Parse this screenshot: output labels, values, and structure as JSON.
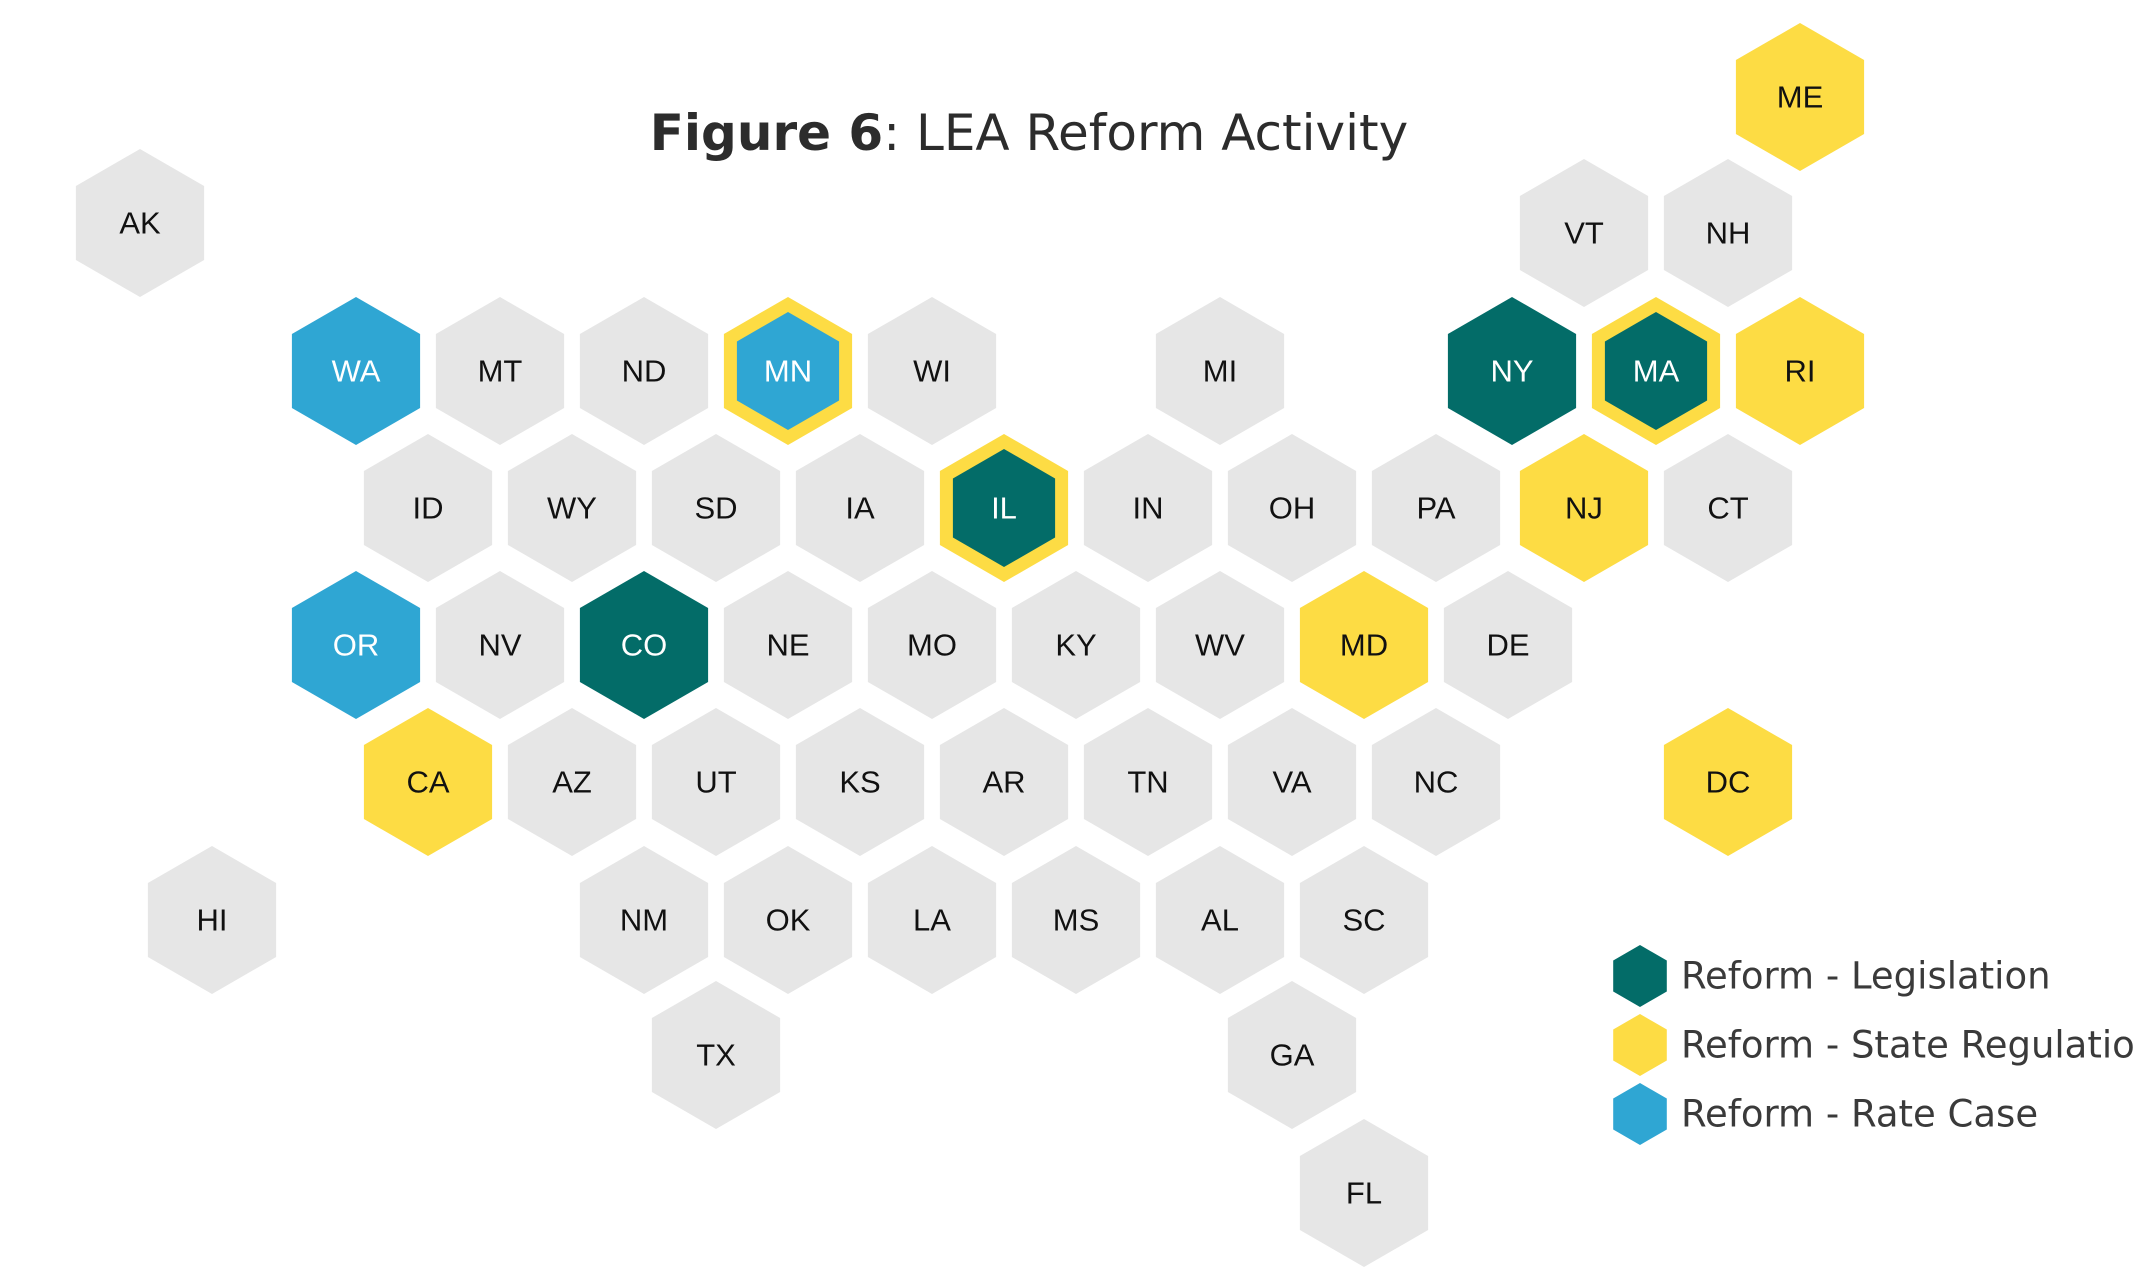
{
  "title": {
    "bold": "Figure 6",
    "rest": ": LEA Reform Activity"
  },
  "colors": {
    "none": "#e6e6e6",
    "legislation": "#036c68",
    "regulation": "#fddc44",
    "rate_case": "#2fa6d3",
    "label_dark": "#111111",
    "label_light": "#ffffff"
  },
  "legend": [
    {
      "key": "legislation",
      "label": "Reform - Legislation"
    },
    {
      "key": "regulation",
      "label": "Reform - State Regulation"
    },
    {
      "key": "rate_case",
      "label": "Reform - Rate Case"
    }
  ],
  "states": [
    {
      "abbr": "ME",
      "fill": "regulation"
    },
    {
      "abbr": "AK",
      "fill": "none"
    },
    {
      "abbr": "VT",
      "fill": "none"
    },
    {
      "abbr": "NH",
      "fill": "none"
    },
    {
      "abbr": "WA",
      "fill": "rate_case"
    },
    {
      "abbr": "MT",
      "fill": "none"
    },
    {
      "abbr": "ND",
      "fill": "none"
    },
    {
      "abbr": "MN",
      "fill": "rate_case",
      "ring": "regulation"
    },
    {
      "abbr": "WI",
      "fill": "none"
    },
    {
      "abbr": "MI",
      "fill": "none"
    },
    {
      "abbr": "NY",
      "fill": "legislation"
    },
    {
      "abbr": "MA",
      "fill": "legislation",
      "ring": "regulation"
    },
    {
      "abbr": "RI",
      "fill": "regulation"
    },
    {
      "abbr": "ID",
      "fill": "none"
    },
    {
      "abbr": "WY",
      "fill": "none"
    },
    {
      "abbr": "SD",
      "fill": "none"
    },
    {
      "abbr": "IA",
      "fill": "none"
    },
    {
      "abbr": "IL",
      "fill": "legislation",
      "ring": "regulation"
    },
    {
      "abbr": "IN",
      "fill": "none"
    },
    {
      "abbr": "OH",
      "fill": "none"
    },
    {
      "abbr": "PA",
      "fill": "none"
    },
    {
      "abbr": "NJ",
      "fill": "regulation"
    },
    {
      "abbr": "CT",
      "fill": "none"
    },
    {
      "abbr": "OR",
      "fill": "rate_case"
    },
    {
      "abbr": "NV",
      "fill": "none"
    },
    {
      "abbr": "CO",
      "fill": "legislation"
    },
    {
      "abbr": "NE",
      "fill": "none"
    },
    {
      "abbr": "MO",
      "fill": "none"
    },
    {
      "abbr": "KY",
      "fill": "none"
    },
    {
      "abbr": "WV",
      "fill": "none"
    },
    {
      "abbr": "MD",
      "fill": "regulation"
    },
    {
      "abbr": "DE",
      "fill": "none"
    },
    {
      "abbr": "CA",
      "fill": "regulation"
    },
    {
      "abbr": "AZ",
      "fill": "none"
    },
    {
      "abbr": "UT",
      "fill": "none"
    },
    {
      "abbr": "KS",
      "fill": "none"
    },
    {
      "abbr": "AR",
      "fill": "none"
    },
    {
      "abbr": "TN",
      "fill": "none"
    },
    {
      "abbr": "VA",
      "fill": "none"
    },
    {
      "abbr": "NC",
      "fill": "none"
    },
    {
      "abbr": "DC",
      "fill": "regulation"
    },
    {
      "abbr": "HI",
      "fill": "none"
    },
    {
      "abbr": "NM",
      "fill": "none"
    },
    {
      "abbr": "OK",
      "fill": "none"
    },
    {
      "abbr": "LA",
      "fill": "none"
    },
    {
      "abbr": "MS",
      "fill": "none"
    },
    {
      "abbr": "AL",
      "fill": "none"
    },
    {
      "abbr": "SC",
      "fill": "none"
    },
    {
      "abbr": "TX",
      "fill": "none"
    },
    {
      "abbr": "GA",
      "fill": "none"
    },
    {
      "abbr": "FL",
      "fill": "none"
    }
  ]
}
